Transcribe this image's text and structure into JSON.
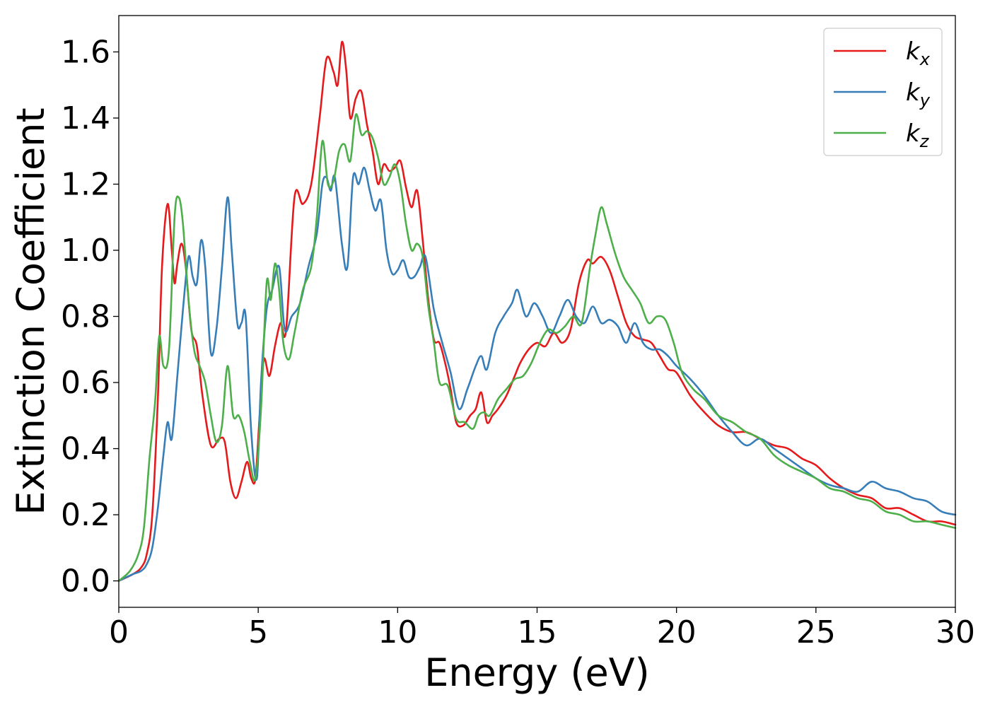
{
  "chart_data": {
    "type": "line",
    "title": "",
    "xlabel": "Energy (eV)",
    "ylabel": "Extinction Coefficient",
    "xlim": [
      0,
      30
    ],
    "ylim": [
      -0.08,
      1.71
    ],
    "xticks": [
      0,
      5,
      10,
      15,
      20,
      25,
      30
    ],
    "xtick_labels": [
      "0",
      "5",
      "10",
      "15",
      "20",
      "25",
      "30"
    ],
    "yticks": [
      0.0,
      0.2,
      0.4,
      0.6,
      0.8,
      1.0,
      1.2,
      1.4,
      1.6
    ],
    "ytick_labels": [
      "0.0",
      "0.2",
      "0.4",
      "0.6",
      "0.8",
      "1.0",
      "1.2",
      "1.4",
      "1.6"
    ],
    "grid": false,
    "legend_position": "top-right",
    "series": [
      {
        "name": "k",
        "subscript": "x",
        "color": "#e41a1c",
        "x": [
          0,
          0.5,
          0.8,
          1.0,
          1.2,
          1.4,
          1.55,
          1.75,
          1.9,
          2.0,
          2.1,
          2.25,
          2.4,
          2.6,
          2.8,
          3.0,
          3.3,
          3.6,
          3.8,
          4.0,
          4.2,
          4.4,
          4.6,
          4.75,
          4.9,
          5.05,
          5.2,
          5.4,
          5.6,
          5.8,
          6.0,
          6.3,
          6.6,
          6.9,
          7.2,
          7.45,
          7.7,
          7.85,
          8.0,
          8.15,
          8.3,
          8.5,
          8.7,
          8.9,
          9.1,
          9.3,
          9.5,
          9.7,
          9.9,
          10.1,
          10.3,
          10.5,
          10.7,
          10.9,
          11.1,
          11.3,
          11.5,
          11.7,
          11.9,
          12.1,
          12.35,
          12.6,
          12.8,
          13.0,
          13.2,
          13.4,
          13.6,
          13.9,
          14.2,
          14.4,
          14.7,
          15.0,
          15.3,
          15.6,
          15.9,
          16.2,
          16.5,
          16.8,
          17.0,
          17.3,
          17.6,
          17.9,
          18.2,
          18.5,
          18.8,
          19.1,
          19.4,
          19.7,
          20.0,
          20.5,
          21.0,
          21.5,
          22.0,
          22.5,
          23.0,
          23.5,
          24.0,
          24.5,
          25.0,
          25.5,
          26.0,
          26.5,
          27.0,
          27.5,
          28.0,
          28.5,
          29.0,
          29.5,
          30.0
        ],
        "y": [
          0.0,
          0.02,
          0.04,
          0.08,
          0.2,
          0.55,
          0.95,
          1.14,
          1.0,
          0.9,
          0.96,
          1.02,
          0.95,
          0.76,
          0.71,
          0.56,
          0.41,
          0.43,
          0.42,
          0.3,
          0.25,
          0.3,
          0.36,
          0.31,
          0.31,
          0.5,
          0.67,
          0.62,
          0.71,
          0.78,
          0.76,
          1.16,
          1.14,
          1.2,
          1.4,
          1.58,
          1.54,
          1.5,
          1.63,
          1.55,
          1.4,
          1.46,
          1.48,
          1.38,
          1.3,
          1.2,
          1.26,
          1.24,
          1.25,
          1.27,
          1.19,
          1.13,
          1.18,
          1.03,
          0.85,
          0.73,
          0.72,
          0.66,
          0.58,
          0.48,
          0.47,
          0.5,
          0.52,
          0.57,
          0.48,
          0.5,
          0.52,
          0.56,
          0.62,
          0.66,
          0.7,
          0.72,
          0.71,
          0.75,
          0.72,
          0.76,
          0.9,
          0.97,
          0.96,
          0.98,
          0.94,
          0.86,
          0.78,
          0.74,
          0.73,
          0.72,
          0.68,
          0.64,
          0.63,
          0.56,
          0.51,
          0.47,
          0.45,
          0.45,
          0.43,
          0.41,
          0.4,
          0.37,
          0.35,
          0.31,
          0.28,
          0.26,
          0.25,
          0.22,
          0.22,
          0.2,
          0.18,
          0.18,
          0.17
        ]
      },
      {
        "name": "k",
        "subscript": "y",
        "color": "#377eb8",
        "x": [
          0,
          0.5,
          0.8,
          1.0,
          1.2,
          1.4,
          1.6,
          1.75,
          1.9,
          2.1,
          2.3,
          2.5,
          2.65,
          2.8,
          2.95,
          3.1,
          3.3,
          3.5,
          3.7,
          3.9,
          4.05,
          4.25,
          4.4,
          4.55,
          4.75,
          4.95,
          5.1,
          5.3,
          5.5,
          5.75,
          5.95,
          6.2,
          6.5,
          6.8,
          7.1,
          7.3,
          7.45,
          7.6,
          7.75,
          8.0,
          8.2,
          8.4,
          8.6,
          8.8,
          9.0,
          9.2,
          9.4,
          9.6,
          9.8,
          10.0,
          10.2,
          10.4,
          10.6,
          10.8,
          11.0,
          11.3,
          11.6,
          11.9,
          12.2,
          12.5,
          12.8,
          13.0,
          13.2,
          13.5,
          13.8,
          14.1,
          14.3,
          14.6,
          14.9,
          15.2,
          15.5,
          15.8,
          16.1,
          16.4,
          16.7,
          17.0,
          17.3,
          17.6,
          17.9,
          18.2,
          18.5,
          18.8,
          19.1,
          19.4,
          19.7,
          20.0,
          20.5,
          21.0,
          21.5,
          22.0,
          22.5,
          23.0,
          23.5,
          24.0,
          24.5,
          25.0,
          25.5,
          26.0,
          26.5,
          27.0,
          27.5,
          28.0,
          28.5,
          29.0,
          29.5,
          30.0
        ],
        "y": [
          0.0,
          0.02,
          0.03,
          0.05,
          0.1,
          0.22,
          0.38,
          0.48,
          0.43,
          0.62,
          0.82,
          0.98,
          0.92,
          0.9,
          1.03,
          0.95,
          0.69,
          0.76,
          0.95,
          1.16,
          1.0,
          0.78,
          0.78,
          0.8,
          0.45,
          0.31,
          0.6,
          0.82,
          0.88,
          0.95,
          0.76,
          0.8,
          0.84,
          0.95,
          1.05,
          1.2,
          1.22,
          1.18,
          1.22,
          1.02,
          0.95,
          1.22,
          1.2,
          1.25,
          1.18,
          1.12,
          1.15,
          1.0,
          0.93,
          0.94,
          0.97,
          0.92,
          0.92,
          0.95,
          0.98,
          0.82,
          0.72,
          0.63,
          0.52,
          0.58,
          0.65,
          0.68,
          0.64,
          0.75,
          0.8,
          0.84,
          0.88,
          0.8,
          0.84,
          0.8,
          0.75,
          0.8,
          0.85,
          0.8,
          0.78,
          0.83,
          0.78,
          0.79,
          0.77,
          0.72,
          0.78,
          0.72,
          0.7,
          0.7,
          0.68,
          0.65,
          0.61,
          0.56,
          0.5,
          0.45,
          0.41,
          0.43,
          0.4,
          0.37,
          0.34,
          0.31,
          0.29,
          0.28,
          0.27,
          0.3,
          0.28,
          0.27,
          0.25,
          0.24,
          0.21,
          0.2
        ]
      },
      {
        "name": "k",
        "subscript": "z",
        "color": "#4daf4a",
        "x": [
          0,
          0.4,
          0.7,
          0.9,
          1.1,
          1.3,
          1.45,
          1.6,
          1.8,
          2.0,
          2.15,
          2.3,
          2.5,
          2.7,
          2.9,
          3.1,
          3.3,
          3.5,
          3.7,
          3.9,
          4.1,
          4.3,
          4.5,
          4.7,
          4.9,
          5.1,
          5.3,
          5.45,
          5.6,
          5.75,
          5.9,
          6.1,
          6.3,
          6.6,
          6.9,
          7.1,
          7.3,
          7.5,
          7.7,
          7.9,
          8.1,
          8.3,
          8.5,
          8.7,
          8.9,
          9.1,
          9.3,
          9.5,
          9.7,
          9.9,
          10.1,
          10.3,
          10.5,
          10.7,
          10.9,
          11.1,
          11.3,
          11.5,
          11.8,
          12.1,
          12.4,
          12.7,
          12.9,
          13.1,
          13.3,
          13.6,
          13.9,
          14.2,
          14.5,
          14.8,
          15.1,
          15.4,
          15.7,
          16.0,
          16.3,
          16.6,
          16.9,
          17.1,
          17.3,
          17.5,
          17.8,
          18.1,
          18.4,
          18.7,
          19.0,
          19.3,
          19.6,
          19.9,
          20.2,
          20.6,
          21.0,
          21.5,
          22.0,
          22.5,
          23.0,
          23.5,
          24.0,
          24.5,
          25.0,
          25.5,
          26.0,
          26.5,
          27.0,
          27.5,
          28.0,
          28.5,
          29.0,
          29.5,
          30.0
        ],
        "y": [
          0.0,
          0.03,
          0.08,
          0.16,
          0.37,
          0.54,
          0.74,
          0.65,
          0.7,
          1.1,
          1.16,
          1.08,
          0.85,
          0.7,
          0.65,
          0.6,
          0.5,
          0.42,
          0.47,
          0.65,
          0.5,
          0.5,
          0.45,
          0.36,
          0.31,
          0.52,
          0.9,
          0.85,
          0.96,
          0.88,
          0.72,
          0.67,
          0.75,
          0.88,
          0.95,
          1.1,
          1.33,
          1.2,
          1.21,
          1.3,
          1.32,
          1.27,
          1.41,
          1.35,
          1.36,
          1.34,
          1.28,
          1.2,
          1.22,
          1.26,
          1.2,
          1.08,
          1.0,
          1.02,
          0.98,
          0.83,
          0.72,
          0.6,
          0.59,
          0.49,
          0.48,
          0.46,
          0.5,
          0.51,
          0.5,
          0.55,
          0.58,
          0.61,
          0.62,
          0.66,
          0.72,
          0.76,
          0.75,
          0.77,
          0.8,
          0.78,
          0.95,
          1.05,
          1.13,
          1.08,
          0.99,
          0.92,
          0.88,
          0.84,
          0.78,
          0.8,
          0.79,
          0.72,
          0.63,
          0.58,
          0.55,
          0.5,
          0.48,
          0.45,
          0.43,
          0.38,
          0.35,
          0.33,
          0.31,
          0.28,
          0.27,
          0.25,
          0.24,
          0.21,
          0.2,
          0.18,
          0.18,
          0.17,
          0.16
        ]
      }
    ]
  }
}
